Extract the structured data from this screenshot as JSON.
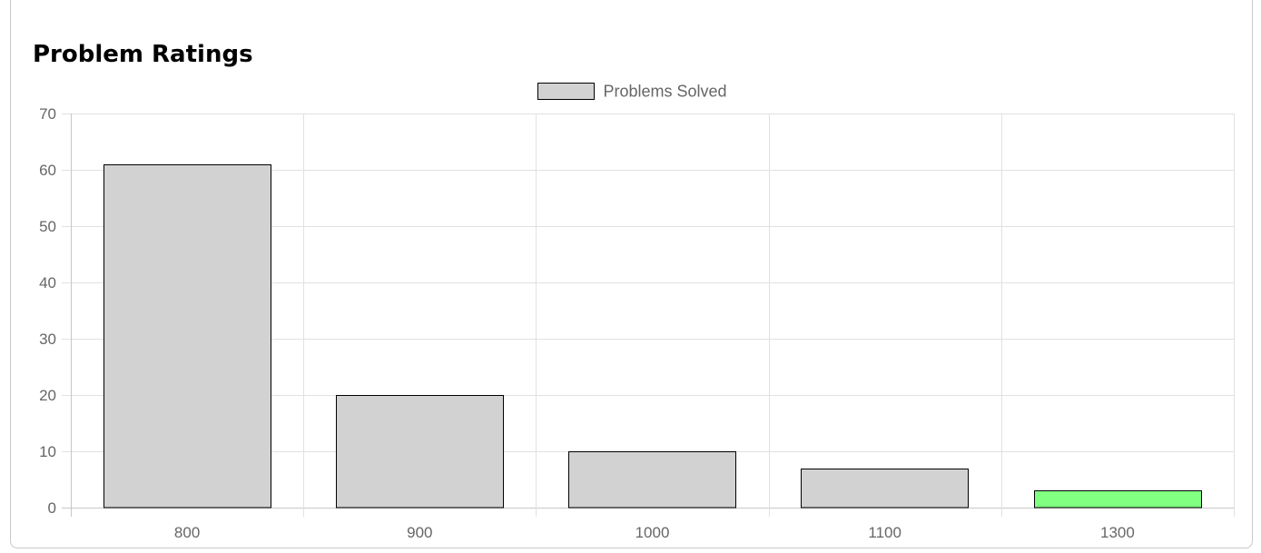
{
  "card": {
    "title": "Problem Ratings"
  },
  "chart_data": {
    "type": "bar",
    "title": "",
    "xlabel": "",
    "ylabel": "",
    "categories": [
      "800",
      "900",
      "1000",
      "1100",
      "1300"
    ],
    "series": [
      {
        "name": "Problems Solved",
        "values": [
          61,
          20,
          10,
          7,
          3
        ]
      }
    ],
    "bar_colors": [
      "#d2d2d2",
      "#d2d2d2",
      "#d2d2d2",
      "#d2d2d2",
      "#80ff80"
    ],
    "bar_border_color": "#000000",
    "legend_color": "#d2d2d2",
    "grid_color": "#e1e1e1",
    "ylim": [
      0,
      70
    ],
    "yticks": [
      0,
      10,
      20,
      30,
      40,
      50,
      60,
      70
    ],
    "grid": true,
    "legend_position": "top-center"
  }
}
